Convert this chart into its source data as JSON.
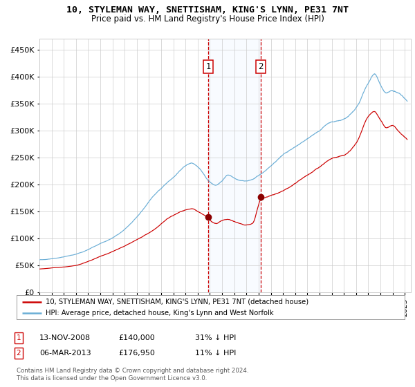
{
  "title": "10, STYLEMAN WAY, SNETTISHAM, KING'S LYNN, PE31 7NT",
  "subtitle": "Price paid vs. HM Land Registry's House Price Index (HPI)",
  "legend_line1": "10, STYLEMAN WAY, SNETTISHAM, KING'S LYNN, PE31 7NT (detached house)",
  "legend_line2": "HPI: Average price, detached house, King's Lynn and West Norfolk",
  "annotation1_date": "13-NOV-2008",
  "annotation1_price": "£140,000",
  "annotation1_hpi": "31% ↓ HPI",
  "annotation2_date": "06-MAR-2013",
  "annotation2_price": "£176,950",
  "annotation2_hpi": "11% ↓ HPI",
  "footnote1": "Contains HM Land Registry data © Crown copyright and database right 2024.",
  "footnote2": "This data is licensed under the Open Government Licence v3.0.",
  "purchase1_year": 2008.87,
  "purchase1_price": 140000,
  "purchase2_year": 2013.18,
  "purchase2_price": 176950,
  "hpi_color": "#6baed6",
  "price_color": "#cc0000",
  "dot_color": "#8b0000",
  "background_color": "#ffffff",
  "grid_color": "#cccccc",
  "shade_color": "#ddeeff",
  "ylim": [
    0,
    470000
  ],
  "xlim_start": 1995,
  "xlim_end": 2025.5,
  "yticks": [
    0,
    50000,
    100000,
    150000,
    200000,
    250000,
    300000,
    350000,
    400000,
    450000
  ]
}
